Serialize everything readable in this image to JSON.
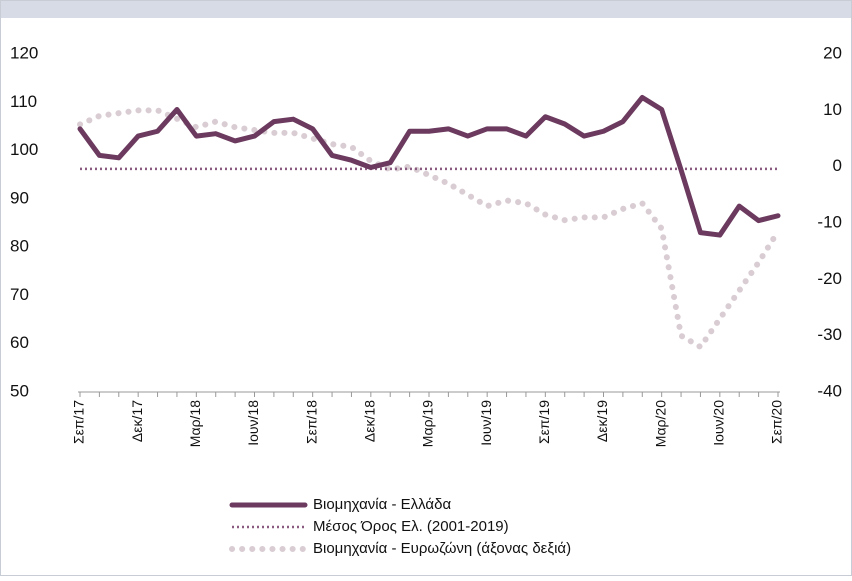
{
  "chart_data": {
    "type": "line",
    "categories": [
      "Σεπ/17",
      null,
      null,
      "Δεκ/17",
      null,
      null,
      "Μαρ/18",
      null,
      null,
      "Ιουν/18",
      null,
      null,
      "Σεπ/18",
      null,
      null,
      "Δεκ/18",
      null,
      null,
      "Μαρ/19",
      null,
      null,
      "Ιουν/19",
      null,
      null,
      "Σεπ/19",
      null,
      null,
      "Δεκ/19",
      null,
      null,
      "Μαρ/20",
      null,
      null,
      "Ιουν/20",
      null,
      null,
      "Σεπ/20"
    ],
    "series": [
      {
        "name": "Βιομηχανία  - Ελλάδα",
        "color": "#6b3a5e",
        "style": "solid",
        "values": [
          104.5,
          99,
          98.5,
          103,
          104,
          108.5,
          103,
          103.5,
          102,
          103,
          106,
          106.5,
          104.5,
          99,
          98,
          96.5,
          97.5,
          104,
          104,
          104.5,
          103,
          104.5,
          104.5,
          103,
          107,
          105.5,
          103,
          104,
          106,
          111,
          108.5,
          96,
          83,
          82.5,
          88.5,
          85.5,
          86.5
        ]
      },
      {
        "name": "Μέσος Όρος Ελ. (2001-2019)",
        "color": "#8b5a80",
        "style": "dotted",
        "values": [
          96.2,
          96.2,
          96.2,
          96.2,
          96.2,
          96.2,
          96.2,
          96.2,
          96.2,
          96.2,
          96.2,
          96.2,
          96.2,
          96.2,
          96.2,
          96.2,
          96.2,
          96.2,
          96.2,
          96.2,
          96.2,
          96.2,
          96.2,
          96.2,
          96.2,
          96.2,
          96.2,
          96.2,
          96.2,
          96.2,
          96.2,
          96.2,
          96.2,
          96.2,
          96.2,
          96.2,
          96.2
        ]
      },
      {
        "name": "Βιομηχανία - Ευρωζώνη (άξονας δεξιά)",
        "color": "#d9cdd3",
        "style": "dots",
        "axis": "y2",
        "values": [
          7.5,
          9,
          9.5,
          10,
          10,
          8.5,
          7,
          8,
          7,
          6.5,
          6,
          6,
          5,
          4,
          3.5,
          1,
          -0.5,
          0,
          -1.5,
          -3,
          -5,
          -7,
          -6,
          -6.5,
          -8.5,
          -9.5,
          -9,
          -9,
          -7.5,
          -6.5,
          -11,
          -30,
          -32,
          -27,
          -22,
          -17,
          -11.5
        ]
      }
    ],
    "ylim": [
      50,
      120
    ],
    "yticks": [
      50,
      60,
      70,
      80,
      90,
      100,
      110,
      120
    ],
    "y2lim": [
      -40,
      20
    ],
    "y2ticks": [
      -40,
      -30,
      -20,
      -10,
      0,
      10,
      20
    ],
    "legend": "bottom"
  }
}
